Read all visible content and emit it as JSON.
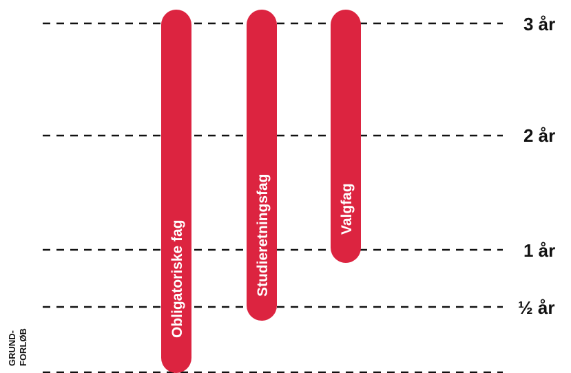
{
  "colors": {
    "bar": "#dc2440",
    "line": "#111111",
    "text": "#111111",
    "bar_text": "#ffffff"
  },
  "timeline": [
    {
      "label": "3 år",
      "value": 3
    },
    {
      "label": "2 år",
      "value": 2
    },
    {
      "label": "1 år",
      "value": 1
    },
    {
      "label": "½ år",
      "value": 0.5
    }
  ],
  "bars": [
    {
      "label": "Obligatoriske fag",
      "start": 0,
      "end": 3
    },
    {
      "label": "Studieretningsfag",
      "start": 0.5,
      "end": 3
    },
    {
      "label": "Valgfag",
      "start": 1,
      "end": 3
    }
  ],
  "side_label": {
    "line1": "GRUND-",
    "line2": "FORLØB"
  }
}
